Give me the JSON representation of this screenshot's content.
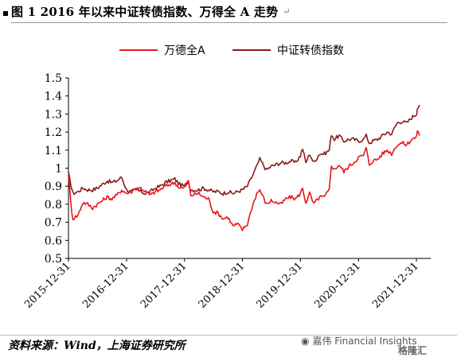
{
  "title": "图 1 2016 年以来中证转债指数、万得全 A 走势",
  "title_mark": "↵",
  "source": "资料来源：Wind，上海证券研究所",
  "brand": "嘉伟 Financial Insights",
  "brand_logo": "格隆汇",
  "chart_data": {
    "type": "line",
    "legend_position": "top-center",
    "ylim": [
      0.5,
      1.5
    ],
    "yticks": [
      "0.5",
      "0.6",
      "0.7",
      "0.8",
      "0.9",
      "1",
      "1.1",
      "1.2",
      "1.3",
      "1.4",
      "1.5"
    ],
    "xticks": [
      "2015-12-31",
      "2016-12-31",
      "2017-12-31",
      "2018-12-31",
      "2019-12-31",
      "2020-12-31",
      "2021-12-31"
    ],
    "x_range": [
      "2015-12-31",
      "2022-03-31"
    ],
    "grid": false,
    "series": [
      {
        "name": "万德全A",
        "color": "#e8141b",
        "points": [
          [
            "2015-12-31",
            0.97
          ],
          [
            "2016-01-15",
            0.8
          ],
          [
            "2016-01-28",
            0.72
          ],
          [
            "2016-02-29",
            0.74
          ],
          [
            "2016-03-31",
            0.81
          ],
          [
            "2016-04-30",
            0.8
          ],
          [
            "2016-05-31",
            0.78
          ],
          [
            "2016-06-30",
            0.8
          ],
          [
            "2016-07-31",
            0.82
          ],
          [
            "2016-08-31",
            0.84
          ],
          [
            "2016-09-30",
            0.83
          ],
          [
            "2016-10-31",
            0.85
          ],
          [
            "2016-11-30",
            0.88
          ],
          [
            "2016-12-31",
            0.86
          ],
          [
            "2017-01-31",
            0.87
          ],
          [
            "2017-02-28",
            0.89
          ],
          [
            "2017-03-31",
            0.89
          ],
          [
            "2017-04-30",
            0.87
          ],
          [
            "2017-05-31",
            0.85
          ],
          [
            "2017-06-30",
            0.87
          ],
          [
            "2017-07-31",
            0.88
          ],
          [
            "2017-08-31",
            0.9
          ],
          [
            "2017-09-30",
            0.91
          ],
          [
            "2017-10-31",
            0.92
          ],
          [
            "2017-11-30",
            0.89
          ],
          [
            "2017-12-31",
            0.89
          ],
          [
            "2018-01-24",
            0.93
          ],
          [
            "2018-02-09",
            0.85
          ],
          [
            "2018-03-31",
            0.86
          ],
          [
            "2018-04-30",
            0.84
          ],
          [
            "2018-05-31",
            0.83
          ],
          [
            "2018-06-30",
            0.76
          ],
          [
            "2018-07-31",
            0.75
          ],
          [
            "2018-08-31",
            0.72
          ],
          [
            "2018-09-30",
            0.73
          ],
          [
            "2018-10-31",
            0.68
          ],
          [
            "2018-11-30",
            0.69
          ],
          [
            "2018-12-31",
            0.66
          ],
          [
            "2019-01-31",
            0.69
          ],
          [
            "2019-02-28",
            0.78
          ],
          [
            "2019-03-31",
            0.86
          ],
          [
            "2019-04-19",
            0.88
          ],
          [
            "2019-05-31",
            0.8
          ],
          [
            "2019-06-30",
            0.82
          ],
          [
            "2019-07-31",
            0.81
          ],
          [
            "2019-08-31",
            0.8
          ],
          [
            "2019-09-30",
            0.83
          ],
          [
            "2019-10-31",
            0.84
          ],
          [
            "2019-11-30",
            0.83
          ],
          [
            "2019-12-31",
            0.86
          ],
          [
            "2020-01-14",
            0.89
          ],
          [
            "2020-02-03",
            0.81
          ],
          [
            "2020-02-28",
            0.86
          ],
          [
            "2020-03-23",
            0.8
          ],
          [
            "2020-04-30",
            0.84
          ],
          [
            "2020-05-31",
            0.84
          ],
          [
            "2020-06-30",
            0.88
          ],
          [
            "2020-07-13",
            1.02
          ],
          [
            "2020-07-31",
            0.99
          ],
          [
            "2020-08-31",
            1.02
          ],
          [
            "2020-09-30",
            0.98
          ],
          [
            "2020-10-31",
            1.01
          ],
          [
            "2020-11-30",
            1.03
          ],
          [
            "2020-12-31",
            1.06
          ],
          [
            "2021-01-31",
            1.07
          ],
          [
            "2021-02-18",
            1.11
          ],
          [
            "2021-03-09",
            1.02
          ],
          [
            "2021-03-31",
            1.04
          ],
          [
            "2021-04-30",
            1.05
          ],
          [
            "2021-05-31",
            1.08
          ],
          [
            "2021-06-30",
            1.1
          ],
          [
            "2021-07-28",
            1.08
          ],
          [
            "2021-08-31",
            1.13
          ],
          [
            "2021-09-30",
            1.14
          ],
          [
            "2021-10-31",
            1.13
          ],
          [
            "2021-11-30",
            1.16
          ],
          [
            "2021-12-31",
            1.17
          ],
          [
            "2022-01-05",
            1.21
          ],
          [
            "2022-01-20",
            1.18
          ]
        ]
      },
      {
        "name": "中证转债指数",
        "color": "#8b1a1a",
        "points": [
          [
            "2015-12-31",
            0.97
          ],
          [
            "2016-01-15",
            0.91
          ],
          [
            "2016-01-28",
            0.86
          ],
          [
            "2016-02-29",
            0.87
          ],
          [
            "2016-03-31",
            0.89
          ],
          [
            "2016-04-30",
            0.88
          ],
          [
            "2016-05-31",
            0.88
          ],
          [
            "2016-06-30",
            0.89
          ],
          [
            "2016-07-31",
            0.91
          ],
          [
            "2016-08-31",
            0.93
          ],
          [
            "2016-09-30",
            0.92
          ],
          [
            "2016-10-31",
            0.93
          ],
          [
            "2016-11-30",
            0.95
          ],
          [
            "2016-12-31",
            0.88
          ],
          [
            "2017-01-31",
            0.87
          ],
          [
            "2017-02-28",
            0.88
          ],
          [
            "2017-03-31",
            0.87
          ],
          [
            "2017-04-30",
            0.86
          ],
          [
            "2017-05-31",
            0.87
          ],
          [
            "2017-06-30",
            0.89
          ],
          [
            "2017-07-31",
            0.9
          ],
          [
            "2017-08-31",
            0.92
          ],
          [
            "2017-09-30",
            0.93
          ],
          [
            "2017-10-31",
            0.94
          ],
          [
            "2017-11-30",
            0.91
          ],
          [
            "2017-12-31",
            0.9
          ],
          [
            "2018-01-24",
            0.93
          ],
          [
            "2018-02-09",
            0.88
          ],
          [
            "2018-03-31",
            0.88
          ],
          [
            "2018-04-30",
            0.89
          ],
          [
            "2018-05-31",
            0.88
          ],
          [
            "2018-06-30",
            0.87
          ],
          [
            "2018-07-31",
            0.87
          ],
          [
            "2018-08-31",
            0.86
          ],
          [
            "2018-09-30",
            0.87
          ],
          [
            "2018-10-31",
            0.86
          ],
          [
            "2018-11-30",
            0.87
          ],
          [
            "2018-12-31",
            0.88
          ],
          [
            "2019-01-31",
            0.9
          ],
          [
            "2019-02-28",
            0.95
          ],
          [
            "2019-03-31",
            1.01
          ],
          [
            "2019-04-19",
            1.05
          ],
          [
            "2019-05-31",
            0.99
          ],
          [
            "2019-06-30",
            1.01
          ],
          [
            "2019-07-31",
            1.02
          ],
          [
            "2019-08-31",
            1.03
          ],
          [
            "2019-09-30",
            1.03
          ],
          [
            "2019-10-31",
            1.04
          ],
          [
            "2019-11-30",
            1.03
          ],
          [
            "2019-12-31",
            1.07
          ],
          [
            "2020-01-14",
            1.11
          ],
          [
            "2020-02-03",
            1.03
          ],
          [
            "2020-02-28",
            1.08
          ],
          [
            "2020-03-23",
            1.03
          ],
          [
            "2020-04-30",
            1.08
          ],
          [
            "2020-05-31",
            1.08
          ],
          [
            "2020-06-30",
            1.1
          ],
          [
            "2020-07-13",
            1.19
          ],
          [
            "2020-07-31",
            1.16
          ],
          [
            "2020-08-31",
            1.18
          ],
          [
            "2020-09-30",
            1.15
          ],
          [
            "2020-10-31",
            1.16
          ],
          [
            "2020-11-30",
            1.16
          ],
          [
            "2020-12-31",
            1.15
          ],
          [
            "2021-01-31",
            1.16
          ],
          [
            "2021-02-18",
            1.18
          ],
          [
            "2021-03-09",
            1.14
          ],
          [
            "2021-03-31",
            1.15
          ],
          [
            "2021-04-30",
            1.16
          ],
          [
            "2021-05-31",
            1.18
          ],
          [
            "2021-06-30",
            1.2
          ],
          [
            "2021-07-28",
            1.19
          ],
          [
            "2021-08-31",
            1.25
          ],
          [
            "2021-09-30",
            1.26
          ],
          [
            "2021-10-31",
            1.25
          ],
          [
            "2021-11-30",
            1.28
          ],
          [
            "2021-12-31",
            1.3
          ],
          [
            "2022-01-05",
            1.33
          ],
          [
            "2022-01-20",
            1.35
          ]
        ]
      }
    ]
  }
}
